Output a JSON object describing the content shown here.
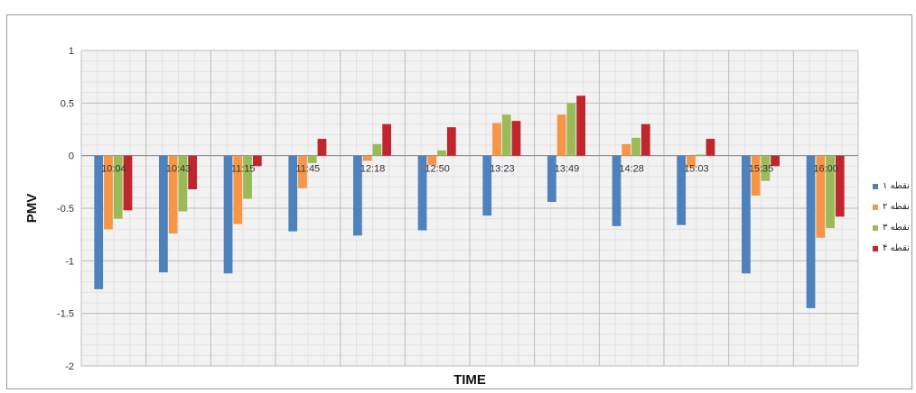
{
  "chart_data": {
    "type": "bar",
    "title": "",
    "xlabel": "TIME",
    "ylabel": "PMV",
    "ylim": [
      -2,
      1
    ],
    "yticks": [
      "1",
      "0.5",
      "0",
      "-0.5",
      "-1",
      "-1.5",
      "-2"
    ],
    "yticks_values": [
      1,
      0.5,
      0,
      -0.5,
      -1,
      -1.5,
      -2
    ],
    "categories": [
      "10:04",
      "10:43",
      "11:15",
      "11:45",
      "12:18",
      "12:50",
      "13:23",
      "13:49",
      "14:28",
      "15:03",
      "15:35",
      "16:00"
    ],
    "grid": true,
    "legend_position": "right",
    "series": [
      {
        "name": "نقطه ۱",
        "color": "#4f81bd",
        "values": [
          -1.27,
          -1.11,
          -1.12,
          -0.72,
          -0.76,
          -0.71,
          -0.57,
          -0.44,
          -0.67,
          -0.66,
          -1.12,
          -1.45
        ]
      },
      {
        "name": "نقطه ۲",
        "color": "#f79646",
        "values": [
          -0.7,
          -0.74,
          -0.65,
          -0.31,
          -0.05,
          -0.09,
          0.31,
          0.39,
          0.11,
          -0.11,
          -0.38,
          -0.78
        ]
      },
      {
        "name": "نقطه ۳",
        "color": "#9bbb59",
        "values": [
          -0.6,
          -0.53,
          -0.41,
          -0.07,
          0.11,
          0.05,
          0.39,
          0.5,
          0.17,
          0.01,
          -0.24,
          -0.69
        ]
      },
      {
        "name": "نقطه ۴",
        "color": "#c0262d",
        "values": [
          -0.52,
          -0.32,
          -0.1,
          0.16,
          0.3,
          0.27,
          0.33,
          0.57,
          0.3,
          0.16,
          -0.1,
          -0.58
        ]
      }
    ]
  }
}
